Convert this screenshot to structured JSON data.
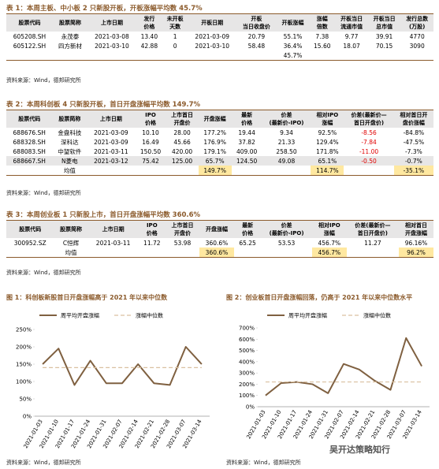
{
  "tables": [
    {
      "title": "表 1：本周主板、中小板 2 只新股开板，开板涨幅平均数 45.7%",
      "headers": [
        "股票代码",
        "股票简称",
        "上市日期",
        "发行\n价格",
        "未开板\n天数",
        "开板日期",
        "开板\n当日收盘价",
        "开板涨幅",
        "涨幅\n倍数",
        "开板当日\n流通市值",
        "开板当日\n总市值",
        "发行总数\n(万股)"
      ],
      "rows": [
        [
          "605208.SH",
          "永茂泰",
          "2021-03-08",
          "13.40",
          "1",
          "2021-03-09",
          "20.79",
          "55.1%",
          "7.38",
          "9.77",
          "39.91",
          "4770"
        ],
        [
          "605122.SH",
          "四方新材",
          "2021-03-10",
          "42.88",
          "0",
          "2021-03-10",
          "58.48",
          "36.4%",
          "15.60",
          "18.07",
          "70.15",
          "3090"
        ]
      ],
      "average": [
        null,
        null,
        null,
        null,
        null,
        null,
        null,
        "45.7%",
        null,
        null,
        null,
        null
      ],
      "source": "资料来源：Wind，德邦研究所"
    },
    {
      "title": "表 2：本周科创板 4 只新股开板，首日开盘涨幅平均数 149.7%",
      "headers": [
        "股票代码",
        "股票简称",
        "上市日期",
        "IPO\n价格",
        "上市首日\n开盘价",
        "开盘涨幅",
        "最新\n价格",
        "价差\n(最新价-IPO)",
        "相对IPO\n涨幅",
        "价差(最新价—\n首日开盘价)",
        "相对首日开\n盘价涨幅"
      ],
      "rows": [
        [
          "688676.SH",
          "金盘科技",
          "2021-03-09",
          "10.10",
          "28.00",
          "177.2%",
          "19.44",
          "9.34",
          "92.5%",
          "-8.56",
          "-84.8%"
        ],
        [
          "688328.SH",
          "深科达",
          "2021-03-09",
          "16.49",
          "45.66",
          "176.9%",
          "37.82",
          "21.33",
          "129.4%",
          "-7.84",
          "-47.5%"
        ],
        [
          "688083.SH",
          "中望软件",
          "2021-03-11",
          "150.50",
          "420.00",
          "179.1%",
          "409.00",
          "258.50",
          "171.8%",
          "-11.00",
          "-7.3%"
        ],
        [
          "688667.SH",
          "N菱电",
          "2021-03-12",
          "75.42",
          "125.00",
          "65.7%",
          "124.50",
          "49.08",
          "65.1%",
          "-0.50",
          "-0.7%"
        ]
      ],
      "average": [
        null,
        "均值",
        null,
        null,
        null,
        "149.7%",
        null,
        null,
        "114.7%",
        null,
        "-35.1%"
      ],
      "source": "资料来源：Wind，德邦研究所"
    },
    {
      "title": "表 3：本周创业板 1 只新股上市，首日开盘涨幅平均数 360.6%",
      "headers": [
        "股票代码",
        "股票简称",
        "上市日期",
        "IPO\n价格",
        "上市首日\n开盘价",
        "开盘涨幅",
        "最新\n价格",
        "价差\n(最新价-IPO)",
        "相对IPO\n涨幅",
        "价差(最新价—\n首日开盘价)",
        "相对首日\n开盘涨幅"
      ],
      "rows": [
        [
          "300952.SZ",
          "C恒辉",
          "2021-03-11",
          "11.72",
          "53.98",
          "360.6%",
          "65.25",
          "53.53",
          "456.7%",
          "11.27",
          "96.16%"
        ]
      ],
      "average": [
        null,
        "均值",
        null,
        null,
        null,
        "360.6%",
        null,
        null,
        "456.7%",
        null,
        "96.2%"
      ],
      "source": "资料来源：Wind，德邦研究所"
    }
  ],
  "figures": [
    {
      "title": "图 1：科创板新股首日开盘涨幅高于 2021 年以来中位数",
      "source": "资料来源：Wind，德邦研究所",
      "chart": {
        "type": "line",
        "categories": [
          "2021-01-03",
          "2021-01-10",
          "2021-01-17",
          "2021-01-24",
          "2021-01-31",
          "2021-02-07",
          "2021-02-14",
          "2021-02-21",
          "2021-02-28",
          "2021-03-07",
          "2021-03-14"
        ],
        "series": [
          {
            "name": "周平均开盘涨幅",
            "color": "#7f6040",
            "dash": false,
            "values": [
              150,
              195,
              90,
              160,
              95,
              95,
              150,
              95,
              90,
              200,
              150
            ]
          },
          {
            "name": "涨幅中位数",
            "color": "#d9c0a0",
            "dash": true,
            "values": [
              140,
              140,
              140,
              140,
              140,
              140,
              140,
              140,
              140,
              140,
              140
            ]
          }
        ],
        "ylim": [
          0,
          250
        ],
        "yticks": [
          {
            "value": 0,
            "label": "0%"
          },
          {
            "value": 50,
            "label": "50%"
          },
          {
            "value": 100,
            "label": "100%"
          },
          {
            "value": 150,
            "label": "150%"
          },
          {
            "value": 200,
            "label": "200%"
          },
          {
            "value": 250,
            "label": "250%"
          }
        ]
      }
    },
    {
      "title": "图 2：创业板首日开盘涨幅回落，仍高于 2021 年以来中位数水平",
      "source": "资料来源：Wind，德邦研究所",
      "chart": {
        "type": "line",
        "categories": [
          "2021-01-03",
          "2021-01-10",
          "2021-01-17",
          "2021-01-24",
          "2021-01-31",
          "2021-02-07",
          "2021-02-14",
          "2021-02-21",
          "2021-02-28",
          "2021-03-07",
          "2021-03-14"
        ],
        "series": [
          {
            "name": "周平均开盘涨幅",
            "color": "#7f6040",
            "dash": false,
            "values": [
              100,
              210,
              220,
              200,
              120,
              380,
              330,
              230,
              150,
              610,
              360
            ]
          },
          {
            "name": "涨幅中位数",
            "color": "#d9c0a0",
            "dash": true,
            "values": [
              220,
              220,
              220,
              220,
              220,
              220,
              220,
              220,
              220,
              220,
              220
            ]
          }
        ],
        "ylim": [
          0,
          700
        ],
        "yticks": [
          {
            "value": 0,
            "label": "0%"
          },
          {
            "value": 100,
            "label": "100%"
          },
          {
            "value": 200,
            "label": "200%"
          },
          {
            "value": 300,
            "label": "300%"
          },
          {
            "value": 400,
            "label": "400%"
          },
          {
            "value": 500,
            "label": "500%"
          },
          {
            "value": 600,
            "label": "600%"
          },
          {
            "value": 700,
            "label": "700%"
          }
        ]
      }
    }
  ],
  "watermark": "吴开达策略知行"
}
